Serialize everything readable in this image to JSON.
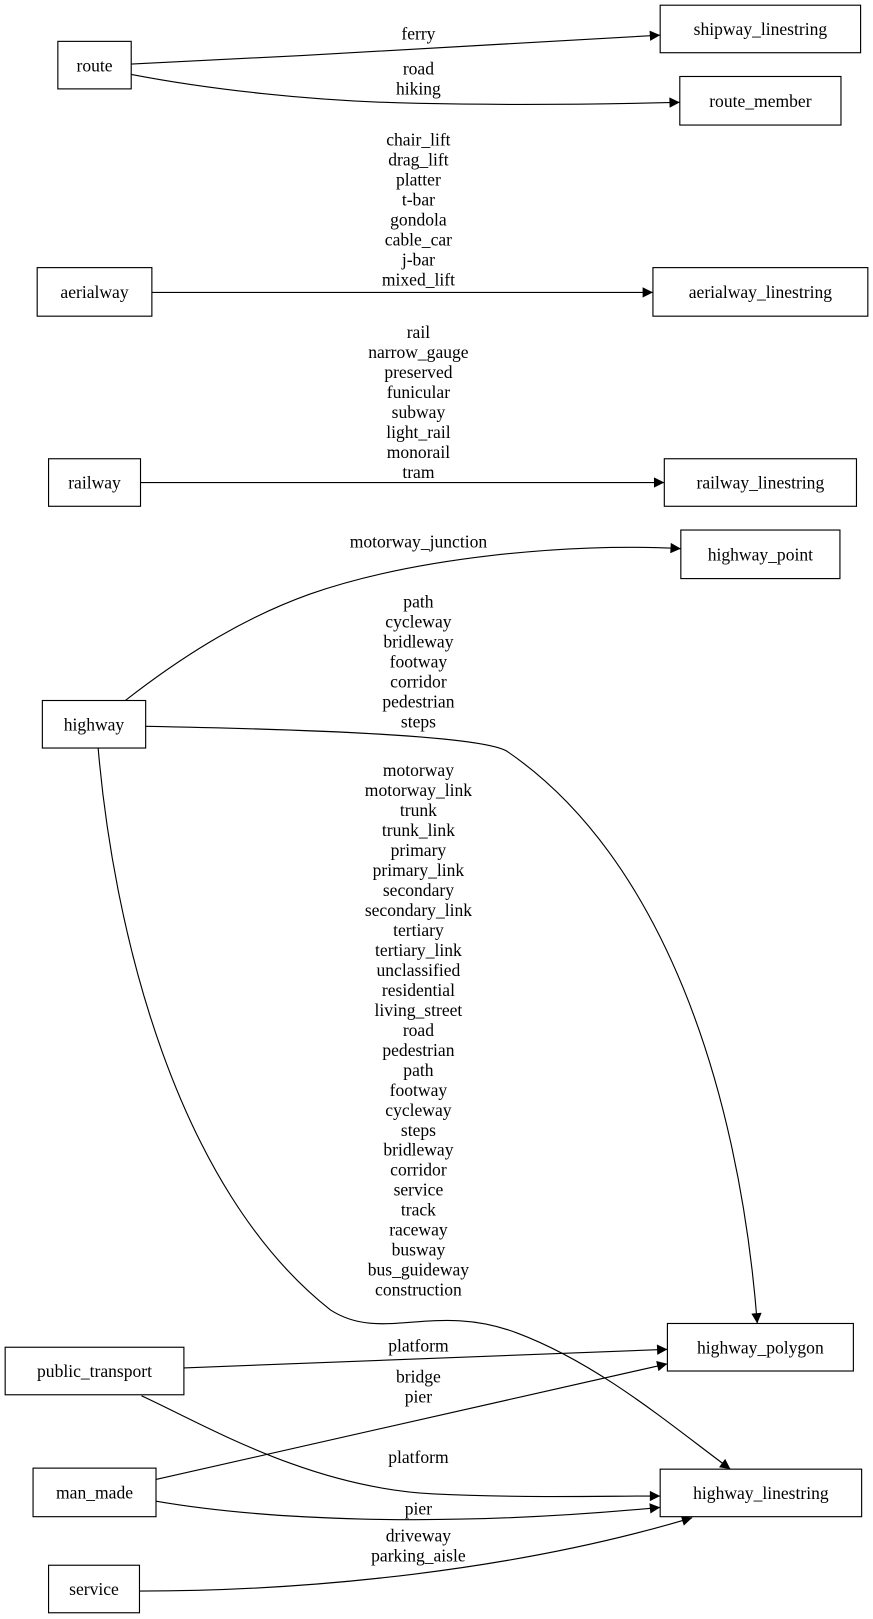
{
  "nodes": [
    {
      "id": "route",
      "label": "route"
    },
    {
      "id": "shipway_linestring",
      "label": "shipway_linestring"
    },
    {
      "id": "route_member",
      "label": "route_member"
    },
    {
      "id": "aerialway",
      "label": "aerialway"
    },
    {
      "id": "aerialway_linestring",
      "label": "aerialway_linestring"
    },
    {
      "id": "railway",
      "label": "railway"
    },
    {
      "id": "railway_linestring",
      "label": "railway_linestring"
    },
    {
      "id": "highway_point",
      "label": "highway_point"
    },
    {
      "id": "highway",
      "label": "highway"
    },
    {
      "id": "highway_polygon",
      "label": "highway_polygon"
    },
    {
      "id": "public_transport",
      "label": "public_transport"
    },
    {
      "id": "man_made",
      "label": "man_made"
    },
    {
      "id": "highway_linestring",
      "label": "highway_linestring"
    },
    {
      "id": "service",
      "label": "service"
    }
  ],
  "edges": [
    {
      "from": "route",
      "to": "shipway_linestring",
      "labels": [
        "ferry"
      ]
    },
    {
      "from": "route",
      "to": "route_member",
      "labels": [
        "road",
        "hiking"
      ]
    },
    {
      "from": "aerialway",
      "to": "aerialway_linestring",
      "labels": [
        "chair_lift",
        "drag_lift",
        "platter",
        "t-bar",
        "gondola",
        "cable_car",
        "j-bar",
        "mixed_lift"
      ]
    },
    {
      "from": "railway",
      "to": "railway_linestring",
      "labels": [
        "rail",
        "narrow_gauge",
        "preserved",
        "funicular",
        "subway",
        "light_rail",
        "monorail",
        "tram"
      ]
    },
    {
      "from": "highway",
      "to": "highway_point",
      "labels": [
        "motorway_junction"
      ]
    },
    {
      "from": "highway",
      "to": "highway_polygon",
      "labels": [
        "path",
        "cycleway",
        "bridleway",
        "footway",
        "corridor",
        "pedestrian",
        "steps"
      ]
    },
    {
      "from": "highway",
      "to": "highway_linestring",
      "labels": [
        "motorway",
        "motorway_link",
        "trunk",
        "trunk_link",
        "primary",
        "primary_link",
        "secondary",
        "secondary_link",
        "tertiary",
        "tertiary_link",
        "unclassified",
        "residential",
        "living_street",
        "road",
        "pedestrian",
        "path",
        "footway",
        "cycleway",
        "steps",
        "bridleway",
        "corridor",
        "service",
        "track",
        "raceway",
        "busway",
        "bus_guideway",
        "construction"
      ]
    },
    {
      "from": "public_transport",
      "to": "highway_polygon",
      "labels": [
        "platform"
      ]
    },
    {
      "from": "public_transport",
      "to": "highway_linestring",
      "labels": [
        "platform"
      ]
    },
    {
      "from": "man_made",
      "to": "highway_polygon",
      "labels": [
        "bridge",
        "pier"
      ]
    },
    {
      "from": "man_made",
      "to": "highway_linestring",
      "labels": [
        "pier"
      ]
    },
    {
      "from": "service",
      "to": "highway_linestring",
      "labels": [
        "driveway",
        "parking_aisle"
      ]
    }
  ]
}
